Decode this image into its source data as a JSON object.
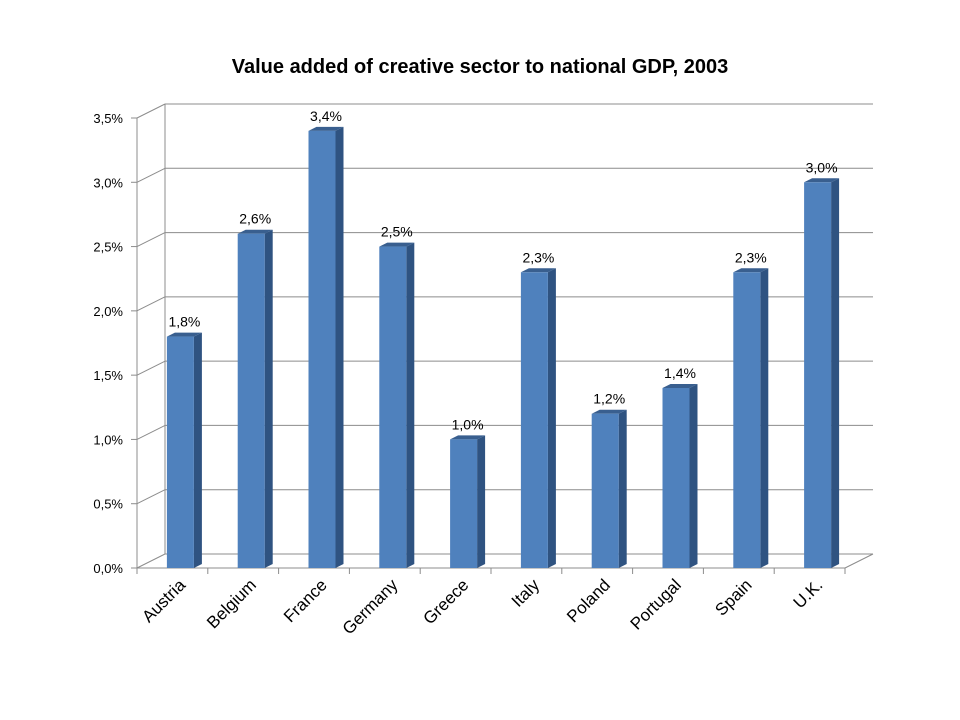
{
  "chart_data": {
    "type": "bar",
    "title": "Value added of creative sector to national GDP, 2003",
    "categories": [
      "Austria",
      "Belgium",
      "France",
      "Germany",
      "Greece",
      "Italy",
      "Poland",
      "Portugal",
      "Spain",
      "U.K."
    ],
    "values": [
      1.8,
      2.6,
      3.4,
      2.5,
      1.0,
      2.3,
      1.2,
      1.4,
      2.3,
      3.0
    ],
    "data_labels": [
      "1,8%",
      "2,6%",
      "3,4%",
      "2,5%",
      "1,0%",
      "2,3%",
      "1,2%",
      "1,4%",
      "2,3%",
      "3,0%"
    ],
    "ylim": [
      0,
      3.5
    ],
    "yticks": [
      0,
      0.5,
      1.0,
      1.5,
      2.0,
      2.5,
      3.0,
      3.5
    ],
    "ytick_labels": [
      "0,0%",
      "0,5%",
      "1,0%",
      "1,5%",
      "2,0%",
      "2,5%",
      "3,0%",
      "3,5%"
    ],
    "grid": true,
    "style": "3d-bar",
    "colors": {
      "bar_front": "#4f81bd",
      "bar_side": "#2f5381",
      "bar_top": "#395f8f",
      "grid": "#8c8c8c"
    }
  }
}
